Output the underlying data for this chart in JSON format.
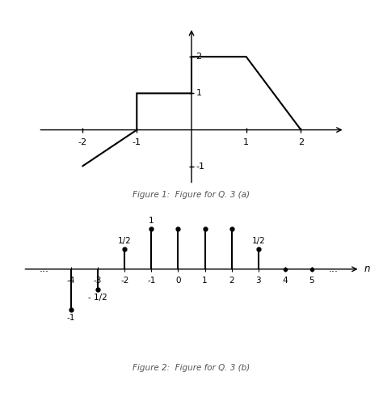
{
  "fig1": {
    "signal_x": [
      -2,
      -1,
      -1,
      0,
      0,
      1,
      2
    ],
    "signal_y": [
      -1,
      0,
      1,
      1,
      2,
      2,
      0
    ],
    "xlim": [
      -2.8,
      2.8
    ],
    "ylim": [
      -1.5,
      2.8
    ],
    "xticks": [
      -2,
      -1,
      1,
      2
    ],
    "ytick_labels": [
      [
        "2",
        2
      ],
      [
        "1",
        1
      ],
      [
        "-1",
        -1
      ]
    ],
    "caption": "Figure 1:  Figure for Q. 3 (a)"
  },
  "fig2": {
    "stems_n": [
      -4,
      -3,
      -2,
      -1,
      0,
      1,
      2,
      3
    ],
    "stems_v": [
      -1,
      -0.5,
      0.5,
      1,
      1,
      1,
      1,
      0.5
    ],
    "zero_dots": [
      4,
      5
    ],
    "xlim": [
      -5.8,
      6.8
    ],
    "ylim": [
      -1.6,
      1.5
    ],
    "xticks": [
      -4,
      -3,
      -2,
      -1,
      0,
      1,
      2,
      3,
      4,
      5
    ],
    "xlabel": "n",
    "caption": "Figure 2:  Figure for Q. 3 (b)",
    "annotations": [
      {
        "n": -2,
        "v": 0.5,
        "label": "1/2",
        "side": "top"
      },
      {
        "n": -1,
        "v": 1.0,
        "label": "1",
        "side": "top"
      },
      {
        "n": 3,
        "v": 0.5,
        "label": "1/2",
        "side": "top"
      },
      {
        "n": -3,
        "v": -0.5,
        "label": "- 1/2",
        "side": "bottom"
      },
      {
        "n": -4,
        "v": -1.0,
        "label": "-1",
        "side": "bottom"
      }
    ]
  },
  "bg_color": "#ffffff",
  "line_color": "#000000",
  "gray_color": "#555555"
}
